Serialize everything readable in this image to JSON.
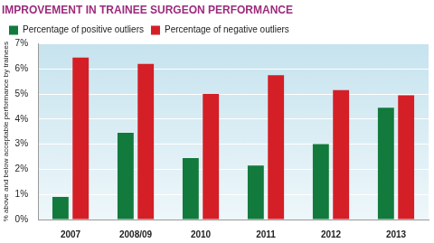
{
  "chart_data": {
    "type": "bar",
    "title": "IMPROVEMENT IN TRAINEE SURGEON PERFORMANCE",
    "y_label": "% above and below acceptable performance by trainees",
    "categories": [
      "2007",
      "2008/09",
      "2010",
      "2011",
      "2012",
      "2013"
    ],
    "series": [
      {
        "name": "Percentage of positive outliers",
        "color": "#127a3c",
        "values": [
          0.9,
          3.45,
          2.45,
          2.15,
          3.0,
          4.45
        ]
      },
      {
        "name": "Percentage of negative outliers",
        "color": "#d41f26",
        "values": [
          6.45,
          6.2,
          5.0,
          5.75,
          5.15,
          4.95
        ]
      }
    ],
    "ylim": [
      0,
      7
    ],
    "yticks": [
      {
        "value": 0,
        "label": "0%"
      },
      {
        "value": 1,
        "label": "1%"
      },
      {
        "value": 2,
        "label": "2%"
      },
      {
        "value": 3,
        "label": "3%"
      },
      {
        "value": 4,
        "label": "4%"
      },
      {
        "value": 5,
        "label": "5%"
      },
      {
        "value": 6,
        "label": "6%"
      },
      {
        "value": 7,
        "label": "7%"
      }
    ],
    "grid": true,
    "legend": "top"
  }
}
